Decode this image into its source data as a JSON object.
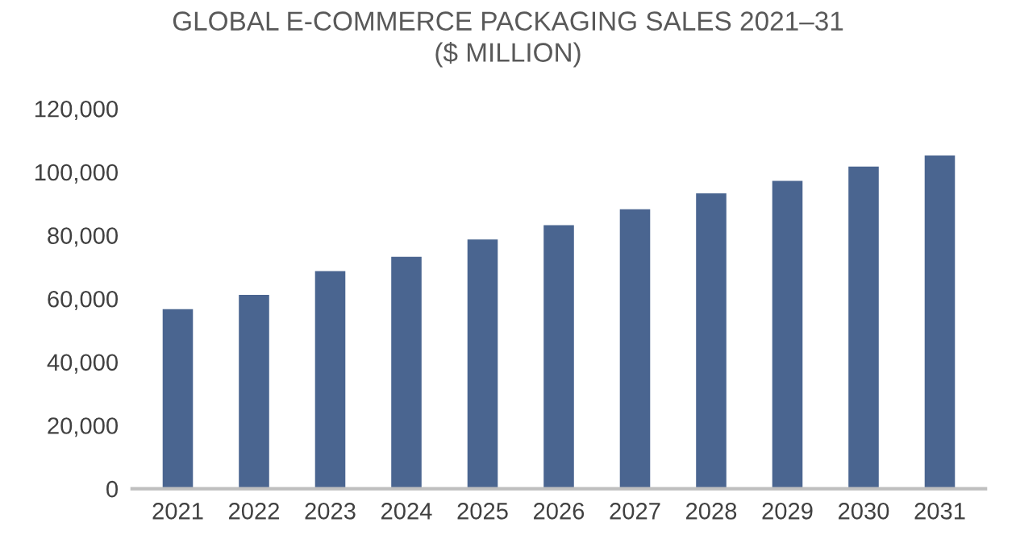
{
  "chart_data": {
    "type": "bar",
    "title": "GLOBAL E-COMMERCE PACKAGING SALES 2021–31\n($ MILLION)",
    "categories": [
      "2021",
      "2022",
      "2023",
      "2024",
      "2025",
      "2026",
      "2027",
      "2028",
      "2029",
      "2030",
      "2031"
    ],
    "values": [
      56500,
      61000,
      68500,
      73000,
      78500,
      83000,
      88000,
      93000,
      97000,
      101500,
      105000
    ],
    "color": "#4a6590",
    "ylim": [
      0,
      120000
    ],
    "yticks": [
      {
        "value": 0,
        "label": "0"
      },
      {
        "value": 20000,
        "label": "20,000"
      },
      {
        "value": 40000,
        "label": "40,000"
      },
      {
        "value": 60000,
        "label": "60,000"
      },
      {
        "value": 80000,
        "label": "80,000"
      },
      {
        "value": 100000,
        "label": "100,000"
      },
      {
        "value": 120000,
        "label": "120,000"
      }
    ],
    "grid": false
  }
}
